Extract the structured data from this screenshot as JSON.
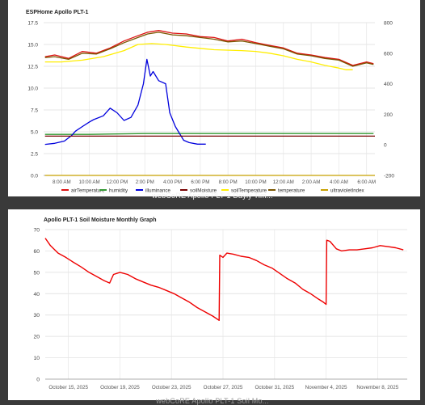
{
  "dashboard": {
    "caption_top": "webCoRE Apollo PLT-1 Dayly Tim...",
    "caption_bottom": "webCoRE Apollo PLT-1 Soil Mo..."
  },
  "chart_data": [
    {
      "type": "line",
      "title": "ESPHome Apollo PLT-1",
      "x_ticks": [
        "8:00 AM",
        "10:00 AM",
        "12:00 PM",
        "2:00 PM",
        "4:00 PM",
        "6:00 PM",
        "8:00 PM",
        "10:00 PM",
        "12:00 AM",
        "2:00 AM",
        "4:00 AM",
        "6:00 AM"
      ],
      "x_tick_hours": [
        8,
        10,
        12,
        14,
        16,
        18,
        20,
        22,
        24,
        26,
        28,
        30
      ],
      "xlim_hours": [
        6.7,
        30.6
      ],
      "y_left": {
        "lim": [
          0,
          17.5
        ],
        "ticks": [
          "0.0",
          "2.5",
          "5.0",
          "7.5",
          "10.0",
          "12.5",
          "15.0",
          "17.5"
        ]
      },
      "y_right": {
        "lim": [
          -200,
          800
        ],
        "ticks": [
          "-200",
          "0",
          "200",
          "400",
          "600",
          "800"
        ]
      },
      "legend_position": "bottom",
      "grid": true,
      "series": [
        {
          "name": "airTemperature",
          "color": "#dd1111",
          "axis": "left",
          "x": [
            6.8,
            7.5,
            8.5,
            9.5,
            10.5,
            11.5,
            12.5,
            13.5,
            14.2,
            15.0,
            16.0,
            17.0,
            18.0,
            19.0,
            20.0,
            21.0,
            22.0,
            23.0,
            24.0,
            25.0,
            26.0,
            27.0,
            28.0,
            29.0,
            30.0,
            30.5
          ],
          "y": [
            13.6,
            13.8,
            13.4,
            14.2,
            14.0,
            14.6,
            15.4,
            16.0,
            16.4,
            16.6,
            16.3,
            16.2,
            15.9,
            15.8,
            15.4,
            15.6,
            15.2,
            14.9,
            14.6,
            14.0,
            13.8,
            13.5,
            13.3,
            12.6,
            13.0,
            12.8
          ]
        },
        {
          "name": "humidity",
          "color": "#339933",
          "axis": "left",
          "x": [
            6.8,
            10,
            14,
            18,
            22,
            26,
            30.5
          ],
          "y": [
            4.7,
            4.7,
            4.8,
            4.8,
            4.8,
            4.8,
            4.8
          ]
        },
        {
          "name": "illuminance",
          "color": "#0000dd",
          "axis": "right",
          "x": [
            6.8,
            7.5,
            8.2,
            8.7,
            9.0,
            9.5,
            10.0,
            10.3,
            11.0,
            11.5,
            12.0,
            12.5,
            13.0,
            13.5,
            13.9,
            14.15,
            14.4,
            14.6,
            15.0,
            15.5,
            15.8,
            16.2,
            16.8,
            17.2,
            17.8,
            18.4
          ],
          "y": [
            3,
            10,
            25,
            60,
            90,
            120,
            150,
            165,
            190,
            240,
            210,
            160,
            180,
            260,
            400,
            560,
            450,
            480,
            420,
            400,
            210,
            120,
            30,
            15,
            5,
            5
          ]
        },
        {
          "name": "soilMoisture",
          "color": "#770000",
          "axis": "left",
          "x": [
            6.8,
            30.6
          ],
          "y": [
            4.5,
            4.5
          ]
        },
        {
          "name": "soilTemperature",
          "color": "#ffee00",
          "axis": "left",
          "x": [
            6.8,
            8.0,
            9.5,
            11.0,
            12.5,
            13.5,
            14.5,
            15.5,
            17.0,
            19.0,
            21.0,
            22.0,
            23.0,
            24.0,
            25.0,
            26.0,
            27.0,
            28.0,
            28.5,
            29.0
          ],
          "y": [
            13.0,
            13.0,
            13.2,
            13.6,
            14.3,
            15.0,
            15.1,
            15.0,
            14.7,
            14.4,
            14.3,
            14.2,
            14.0,
            13.7,
            13.3,
            13.0,
            12.6,
            12.3,
            12.1,
            12.1
          ]
        },
        {
          "name": "temperature",
          "color": "#7a5600",
          "axis": "left",
          "x": [
            6.8,
            7.5,
            8.5,
            9.5,
            10.5,
            11.5,
            12.5,
            13.5,
            14.2,
            15.0,
            16.0,
            17.0,
            18.0,
            19.0,
            20.0,
            21.0,
            22.0,
            23.0,
            24.0,
            25.0,
            26.0,
            27.0,
            28.0,
            29.0,
            30.0,
            30.5
          ],
          "y": [
            13.5,
            13.6,
            13.3,
            14.0,
            13.9,
            14.5,
            15.2,
            15.8,
            16.2,
            16.4,
            16.1,
            16.0,
            15.8,
            15.6,
            15.3,
            15.4,
            15.1,
            14.8,
            14.5,
            13.9,
            13.7,
            13.4,
            13.2,
            12.5,
            12.9,
            12.7
          ]
        },
        {
          "name": "ultravioletIndex",
          "color": "#c8a000",
          "axis": "left",
          "x": [
            6.8,
            30.6
          ],
          "y": [
            0,
            0
          ]
        }
      ]
    },
    {
      "type": "line",
      "title": "Apollo PLT-1 Soil Moisture Monthly Graph",
      "x_ticks": [
        "October 15, 2025",
        "October 19, 2025",
        "October 23, 2025",
        "October 27, 2025",
        "October 31, 2025",
        "November 4, 2025",
        "November 8, 2025"
      ],
      "x_tick_days": [
        15,
        19,
        23,
        27,
        31,
        35,
        39
      ],
      "xlim_days": [
        13.2,
        41.3
      ],
      "ylim": [
        0,
        70
      ],
      "y_ticks": [
        "0",
        "10",
        "20",
        "30",
        "40",
        "50",
        "60",
        "70"
      ],
      "grid": true,
      "series": [
        {
          "name": "",
          "color": "#ee0000",
          "x": [
            13.2,
            13.6,
            14.2,
            14.8,
            15.3,
            16.0,
            16.6,
            17.2,
            17.8,
            18.2,
            18.5,
            19.0,
            19.6,
            20.2,
            20.8,
            21.4,
            22.0,
            22.6,
            23.2,
            23.8,
            24.4,
            25.0,
            25.6,
            26.2,
            26.7,
            26.75,
            27.0,
            27.3,
            27.8,
            28.4,
            29.0,
            29.6,
            30.2,
            30.8,
            31.4,
            32.0,
            32.6,
            33.2,
            33.8,
            34.4,
            34.8,
            35.0,
            35.05,
            35.3,
            35.8,
            36.2,
            36.8,
            37.4,
            38.0,
            38.6,
            39.2,
            39.8,
            40.4,
            41.0
          ],
          "y": [
            66.0,
            62.5,
            59.0,
            57.0,
            55.0,
            52.5,
            50.0,
            48.0,
            46.0,
            45.0,
            49.0,
            50.0,
            49.0,
            47.0,
            45.5,
            44.0,
            43.0,
            41.5,
            40.0,
            38.0,
            36.0,
            33.5,
            31.5,
            29.5,
            27.5,
            58.0,
            57.0,
            59.0,
            58.5,
            57.5,
            57.0,
            55.5,
            53.5,
            52.0,
            49.5,
            47.0,
            45.0,
            42.0,
            40.0,
            37.5,
            36.0,
            35.0,
            65.0,
            64.5,
            61.0,
            60.0,
            60.5,
            60.5,
            61.0,
            61.5,
            62.5,
            62.0,
            61.5,
            60.5
          ]
        }
      ]
    }
  ]
}
